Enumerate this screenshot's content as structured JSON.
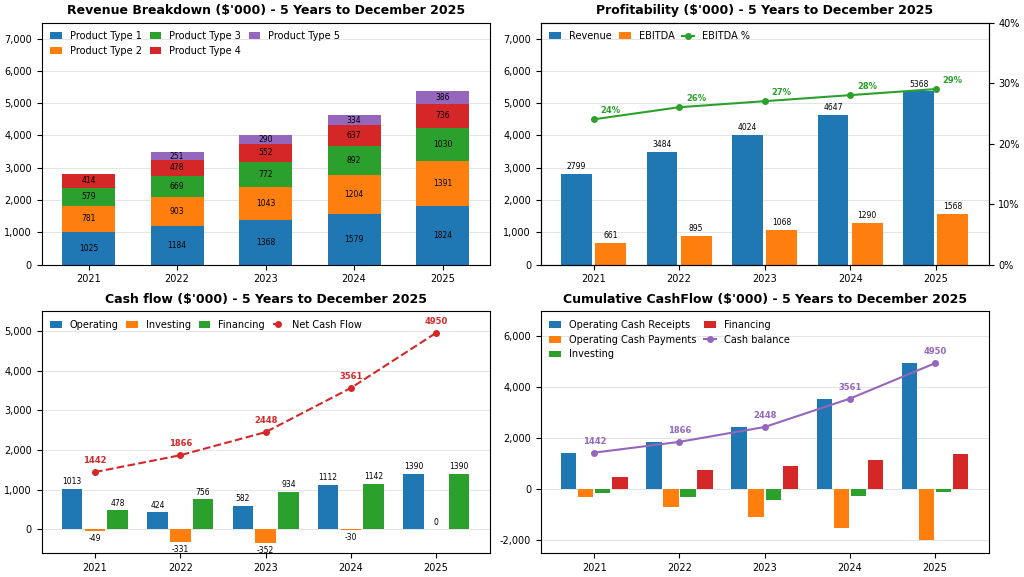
{
  "chart_data": [
    {
      "type": "bar",
      "title": "Revenue Breakdown ($'000) - 5 Years to December 2025",
      "stacked": true,
      "categories": [
        "2021",
        "2022",
        "2023",
        "2024",
        "2025"
      ],
      "series": [
        {
          "name": "Product Type 1",
          "values": [
            1025,
            1184,
            1368,
            1579,
            1824
          ]
        },
        {
          "name": "Product Type 2",
          "values": [
            781,
            903,
            1043,
            1204,
            1391
          ]
        },
        {
          "name": "Product Type 3",
          "values": [
            579,
            669,
            772,
            892,
            1030
          ]
        },
        {
          "name": "Product Type 4",
          "values": [
            414,
            478,
            552,
            637,
            736
          ]
        },
        {
          "name": "Product Type 5",
          "values": [
            0,
            251,
            290,
            334,
            386
          ],
          "value_labels": [
            null,
            "251",
            "290",
            "334",
            "386"
          ]
        }
      ],
      "ylim": [
        0,
        7500
      ],
      "yticks": [
        0,
        {
          "value": 1000,
          "label": "1,000"
        },
        {
          "value": 2000,
          "label": "2,000"
        },
        {
          "value": 3000,
          "label": "3,000"
        },
        {
          "value": 4000,
          "label": "4,000"
        },
        {
          "value": 5000,
          "label": "5,000"
        },
        {
          "value": 6000,
          "label": "6,000"
        },
        {
          "value": 7000,
          "label": "7,000"
        }
      ],
      "grid": true,
      "legend": "upper left",
      "data_labels": true
    },
    {
      "type": "bar",
      "title": "Profitability ($'000) - 5 Years to December 2025",
      "categories": [
        "2021",
        "2022",
        "2023",
        "2024",
        "2025"
      ],
      "series": [
        {
          "name": "Revenue",
          "values": [
            2799,
            3484,
            4024,
            4647,
            5368
          ]
        },
        {
          "name": "EBITDA",
          "values": [
            661,
            895,
            1068,
            1290,
            1568
          ]
        },
        {
          "name": "EBITDA %",
          "type": "line",
          "axis": "y2",
          "marker": "o",
          "line_style": "solid",
          "values": [
            24,
            26,
            27,
            28,
            29
          ],
          "value_labels": [
            "24%",
            "26%",
            "27%",
            "28%",
            "29%"
          ]
        }
      ],
      "ylim": [
        0,
        7500
      ],
      "yticks": [
        0,
        {
          "value": 1000,
          "label": "1,000"
        },
        {
          "value": 2000,
          "label": "2,000"
        },
        {
          "value": 3000,
          "label": "3,000"
        },
        {
          "value": 4000,
          "label": "4,000"
        },
        {
          "value": 5000,
          "label": "5,000"
        },
        {
          "value": 6000,
          "label": "6,000"
        },
        {
          "value": 7000,
          "label": "7,000"
        }
      ],
      "y2lim": [
        0,
        40
      ],
      "y2ticks": [
        {
          "value": 0,
          "label": "0%"
        },
        {
          "value": 10,
          "label": "10%"
        },
        {
          "value": 20,
          "label": "20%"
        },
        {
          "value": 30,
          "label": "30%"
        },
        {
          "value": 40,
          "label": "40%"
        }
      ],
      "grid": true,
      "legend": "upper left",
      "data_labels": true
    },
    {
      "type": "bar",
      "title": "Cash flow ($'000) - 5 Years to December 2025",
      "categories": [
        "2021",
        "2022",
        "2023",
        "2024",
        "2025"
      ],
      "series": [
        {
          "name": "Operating",
          "values": [
            1013,
            424,
            582,
            1112,
            1390
          ]
        },
        {
          "name": "Investing",
          "values": [
            -49,
            -331,
            -352,
            -30,
            0
          ]
        },
        {
          "name": "Financing",
          "values": [
            478,
            756,
            934,
            1142,
            1390
          ]
        },
        {
          "name": "Net Cash Flow",
          "type": "line",
          "marker": "o",
          "line_style": "dashed",
          "values": [
            1442,
            1866,
            2448,
            3561,
            4950
          ]
        }
      ],
      "ylim": [
        -600,
        5500
      ],
      "yticks": [
        0,
        {
          "value": 1000,
          "label": "1,000"
        },
        {
          "value": 2000,
          "label": "2,000"
        },
        {
          "value": 3000,
          "label": "3,000"
        },
        {
          "value": 4000,
          "label": "4,000"
        },
        {
          "value": 5000,
          "label": "5,000"
        }
      ],
      "grid": true,
      "legend": "upper left",
      "data_labels": true
    },
    {
      "type": "bar",
      "title": "Cumulative CashFlow ($'000) - 5 Years to December 2025",
      "categories": [
        "2021",
        "2022",
        "2023",
        "2024",
        "2025"
      ],
      "series": [
        {
          "name": "Operating Cash Receipts",
          "values": [
            1442,
            1866,
            2448,
            3561,
            4950
          ]
        },
        {
          "name": "Operating Cash Payments",
          "values": [
            -300,
            -700,
            -1100,
            -1500,
            -2000
          ]
        },
        {
          "name": "Investing",
          "values": [
            -150,
            -300,
            -400,
            -250,
            -100
          ]
        },
        {
          "name": "Financing",
          "values": [
            478,
            756,
            934,
            1142,
            1390
          ]
        },
        {
          "name": "Cash balance",
          "type": "line",
          "marker": "o",
          "line_style": "solid",
          "data_labels": true,
          "values": [
            1442,
            1866,
            2448,
            3561,
            4950
          ]
        }
      ],
      "ylim": [
        -2500,
        7000
      ],
      "yticks": [
        {
          "value": -2000,
          "label": "-2,000"
        },
        0,
        {
          "value": 2000,
          "label": "2,000"
        },
        {
          "value": 4000,
          "label": "4,000"
        },
        {
          "value": 6000,
          "label": "6,000"
        }
      ],
      "grid": true,
      "legend": "upper left"
    }
  ]
}
